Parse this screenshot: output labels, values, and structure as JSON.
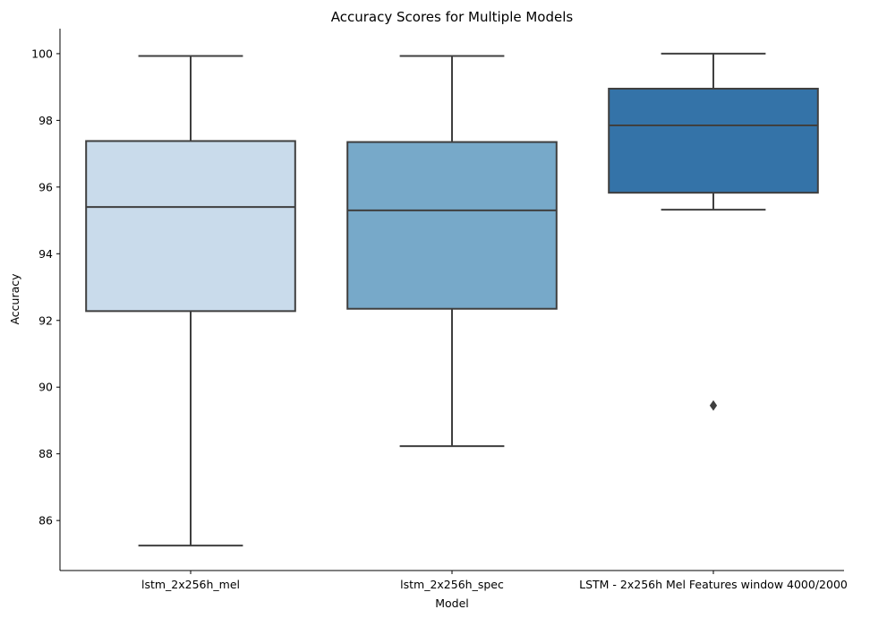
{
  "chart_data": {
    "type": "box",
    "title": "Accuracy Scores for Multiple Models",
    "xlabel": "Model",
    "ylabel": "Accuracy",
    "ylim": [
      84.5,
      100.75
    ],
    "yticks": [
      86,
      88,
      90,
      92,
      94,
      96,
      98,
      100
    ],
    "grid": false,
    "categories": [
      "lstm_2x256h_mel",
      "lstm_2x256h_spec",
      "LSTM - 2x256h Mel Features window 4000/2000"
    ],
    "series": [
      {
        "whisker_low": 85.25,
        "q1": 92.28,
        "median": 95.4,
        "q3": 97.38,
        "whisker_high": 99.93,
        "outliers": [],
        "color": "#c9dbeb"
      },
      {
        "whisker_low": 88.23,
        "q1": 92.35,
        "median": 95.3,
        "q3": 97.35,
        "whisker_high": 99.93,
        "outliers": [],
        "color": "#77a9c9"
      },
      {
        "whisker_low": 95.32,
        "q1": 95.83,
        "median": 97.85,
        "q3": 98.95,
        "whisker_high": 100.0,
        "outliers": [
          89.45
        ],
        "color": "#3473a8"
      }
    ]
  }
}
